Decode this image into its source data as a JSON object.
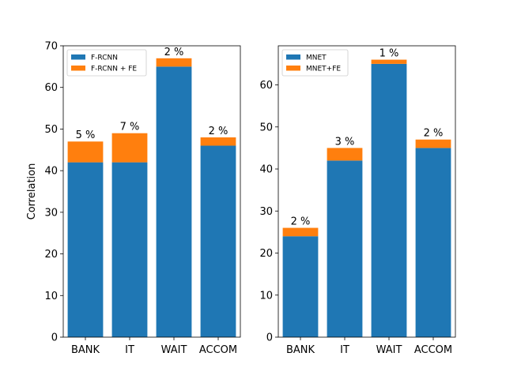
{
  "chart_data": [
    {
      "type": "bar",
      "stacked": true,
      "categories": [
        "BANK",
        "IT",
        "WAIT",
        "ACCOM"
      ],
      "series": [
        {
          "name": "F-RCNN",
          "values": [
            42,
            42,
            65,
            46
          ],
          "color": "#1f77b4"
        },
        {
          "name": "F-RCNN + FE",
          "values": [
            5,
            7,
            2,
            2
          ],
          "color": "#ff7f0e"
        }
      ],
      "data_labels": [
        "5 %",
        "7 %",
        "2 %",
        "2 %"
      ],
      "xlabel": "",
      "ylabel": "Correlation",
      "ylim": [
        0,
        70
      ],
      "yticks": [
        0,
        10,
        20,
        30,
        40,
        50,
        60,
        70
      ],
      "legend_position": "top-left",
      "grid": false
    },
    {
      "type": "bar",
      "stacked": true,
      "categories": [
        "BANK",
        "IT",
        "WAIT",
        "ACCOM"
      ],
      "series": [
        {
          "name": "MNET",
          "values": [
            24,
            42,
            65,
            45
          ],
          "color": "#1f77b4"
        },
        {
          "name": "MNET+FE",
          "values": [
            2,
            3,
            1,
            2
          ],
          "color": "#ff7f0e"
        }
      ],
      "data_labels": [
        "2 %",
        "3 %",
        "1 %",
        "2 %"
      ],
      "xlabel": "",
      "ylabel": "",
      "ylim": [
        0,
        69.3
      ],
      "yticks": [
        0,
        10,
        20,
        30,
        40,
        50,
        60
      ],
      "legend_position": "top-left",
      "grid": false
    }
  ]
}
